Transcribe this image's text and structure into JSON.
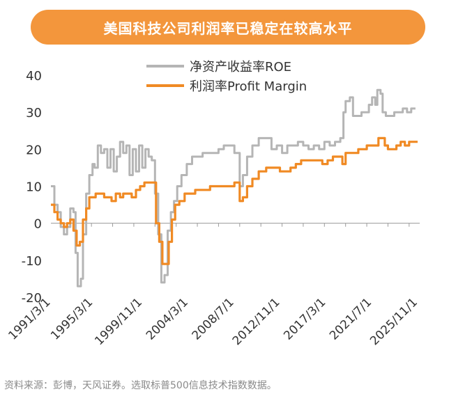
{
  "title": "美国科技公司利润率已稳定在较高水平",
  "source": "资料来源：彭博，天风证券。选取标普500信息技术指数数据。",
  "colors": {
    "roe": "#B5B5B5",
    "margin": "#F08A24",
    "banner": "#F3963C"
  },
  "chart_data": {
    "type": "line",
    "title": "美国科技公司利润率已稳定在较高水平",
    "xlabel": "",
    "ylabel": "",
    "ylim": [
      -20,
      40
    ],
    "yticks": [
      -20,
      -10,
      0,
      10,
      20,
      30,
      40
    ],
    "xlim": [
      1991.17,
      2026.0
    ],
    "xtick_labels": [
      "1991/3/1",
      "1995/3/1",
      "1999/11/1",
      "2004/3/1",
      "2008/7/1",
      "2012/11/1",
      "2017/3/1",
      "2021/7/1",
      "2025/11/1"
    ],
    "xtick_years": [
      1991.17,
      1995.17,
      1999.83,
      2004.17,
      2008.5,
      2012.83,
      2017.17,
      2021.5,
      2025.83
    ],
    "legend_position": "top-right",
    "grid": false,
    "series": [
      {
        "name": "净资产收益率ROE",
        "color": "#B5B5B5",
        "points": [
          [
            1991.17,
            10
          ],
          [
            1991.5,
            5
          ],
          [
            1991.8,
            3
          ],
          [
            1992.1,
            -1
          ],
          [
            1992.4,
            -3
          ],
          [
            1992.7,
            -1
          ],
          [
            1993.0,
            4
          ],
          [
            1993.3,
            3
          ],
          [
            1993.5,
            -8
          ],
          [
            1993.7,
            -17
          ],
          [
            1994.0,
            -15
          ],
          [
            1994.2,
            -3
          ],
          [
            1994.5,
            8
          ],
          [
            1994.8,
            13
          ],
          [
            1995.1,
            16
          ],
          [
            1995.3,
            15
          ],
          [
            1995.6,
            21
          ],
          [
            1995.9,
            19
          ],
          [
            1996.2,
            20
          ],
          [
            1996.5,
            15
          ],
          [
            1996.8,
            20
          ],
          [
            1997.1,
            14
          ],
          [
            1997.4,
            18
          ],
          [
            1997.7,
            22
          ],
          [
            1998.0,
            19
          ],
          [
            1998.3,
            21
          ],
          [
            1998.6,
            13
          ],
          [
            1998.9,
            20
          ],
          [
            1999.2,
            14
          ],
          [
            1999.5,
            21
          ],
          [
            1999.8,
            15
          ],
          [
            2000.1,
            20
          ],
          [
            2000.4,
            18
          ],
          [
            2000.7,
            17
          ],
          [
            2001.0,
            8
          ],
          [
            2001.3,
            -3
          ],
          [
            2001.6,
            -16
          ],
          [
            2001.9,
            -14
          ],
          [
            2002.2,
            -2
          ],
          [
            2002.5,
            3
          ],
          [
            2002.8,
            6
          ],
          [
            2003.1,
            10
          ],
          [
            2003.5,
            13
          ],
          [
            2004.0,
            16
          ],
          [
            2004.5,
            18
          ],
          [
            2005.0,
            18
          ],
          [
            2005.5,
            19
          ],
          [
            2006.0,
            19
          ],
          [
            2006.5,
            19
          ],
          [
            2007.0,
            20
          ],
          [
            2007.5,
            21
          ],
          [
            2008.0,
            21
          ],
          [
            2008.5,
            19
          ],
          [
            2009.0,
            10
          ],
          [
            2009.3,
            13
          ],
          [
            2009.7,
            18
          ],
          [
            2010.2,
            21
          ],
          [
            2010.8,
            23
          ],
          [
            2011.5,
            23
          ],
          [
            2012.0,
            20
          ],
          [
            2012.5,
            21
          ],
          [
            2013.0,
            19
          ],
          [
            2013.5,
            21
          ],
          [
            2014.0,
            21
          ],
          [
            2014.5,
            22
          ],
          [
            2015.0,
            21
          ],
          [
            2015.5,
            20
          ],
          [
            2016.0,
            21
          ],
          [
            2016.5,
            20
          ],
          [
            2017.0,
            22
          ],
          [
            2017.5,
            21
          ],
          [
            2018.0,
            22
          ],
          [
            2018.5,
            23
          ],
          [
            2018.8,
            30
          ],
          [
            2019.0,
            33
          ],
          [
            2019.4,
            34
          ],
          [
            2019.7,
            29
          ],
          [
            2020.0,
            29
          ],
          [
            2020.5,
            30
          ],
          [
            2020.9,
            30
          ],
          [
            2021.2,
            32
          ],
          [
            2021.5,
            34
          ],
          [
            2021.8,
            32
          ],
          [
            2022.0,
            36
          ],
          [
            2022.3,
            35
          ],
          [
            2022.5,
            30
          ],
          [
            2022.8,
            29
          ],
          [
            2023.2,
            29
          ],
          [
            2023.6,
            30
          ],
          [
            2024.0,
            30
          ],
          [
            2024.4,
            31
          ],
          [
            2024.8,
            30
          ],
          [
            2025.2,
            31
          ],
          [
            2025.6,
            31
          ]
        ]
      },
      {
        "name": "利润率Profit Margin",
        "color": "#F08A24",
        "points": [
          [
            1991.17,
            5
          ],
          [
            1991.5,
            3
          ],
          [
            1991.8,
            1
          ],
          [
            1992.1,
            0
          ],
          [
            1992.4,
            -1
          ],
          [
            1992.7,
            0
          ],
          [
            1993.0,
            1
          ],
          [
            1993.3,
            -2
          ],
          [
            1993.6,
            -6
          ],
          [
            1993.9,
            -5
          ],
          [
            1994.2,
            1
          ],
          [
            1994.5,
            4
          ],
          [
            1994.8,
            7
          ],
          [
            1995.1,
            7
          ],
          [
            1995.4,
            8
          ],
          [
            1995.8,
            8
          ],
          [
            1996.2,
            7
          ],
          [
            1996.5,
            7
          ],
          [
            1996.9,
            6
          ],
          [
            1997.3,
            8
          ],
          [
            1997.7,
            7
          ],
          [
            1998.0,
            8
          ],
          [
            1998.4,
            8
          ],
          [
            1998.8,
            7
          ],
          [
            1999.2,
            9
          ],
          [
            1999.6,
            10
          ],
          [
            2000.0,
            11
          ],
          [
            2000.4,
            11
          ],
          [
            2000.8,
            11
          ],
          [
            2001.1,
            0
          ],
          [
            2001.4,
            -5
          ],
          [
            2001.7,
            -11
          ],
          [
            2002.0,
            -11
          ],
          [
            2002.3,
            -5
          ],
          [
            2002.6,
            1
          ],
          [
            2002.9,
            5
          ],
          [
            2003.3,
            6
          ],
          [
            2003.8,
            8
          ],
          [
            2004.3,
            8
          ],
          [
            2004.8,
            9
          ],
          [
            2005.5,
            9
          ],
          [
            2006.2,
            10
          ],
          [
            2007.0,
            10
          ],
          [
            2007.8,
            10
          ],
          [
            2008.5,
            11
          ],
          [
            2009.0,
            6
          ],
          [
            2009.3,
            7
          ],
          [
            2009.7,
            10
          ],
          [
            2010.2,
            12
          ],
          [
            2010.8,
            14
          ],
          [
            2011.5,
            15
          ],
          [
            2012.2,
            15
          ],
          [
            2012.8,
            14
          ],
          [
            2013.3,
            14
          ],
          [
            2013.8,
            15
          ],
          [
            2014.3,
            16
          ],
          [
            2014.8,
            17
          ],
          [
            2015.3,
            17
          ],
          [
            2015.8,
            17
          ],
          [
            2016.3,
            17
          ],
          [
            2016.8,
            16
          ],
          [
            2017.3,
            17
          ],
          [
            2017.8,
            18
          ],
          [
            2018.3,
            18
          ],
          [
            2018.7,
            16
          ],
          [
            2019.0,
            19
          ],
          [
            2019.4,
            19
          ],
          [
            2019.8,
            19
          ],
          [
            2020.2,
            20
          ],
          [
            2020.6,
            20
          ],
          [
            2021.0,
            21
          ],
          [
            2021.4,
            21
          ],
          [
            2021.8,
            21
          ],
          [
            2022.1,
            23
          ],
          [
            2022.4,
            23
          ],
          [
            2022.7,
            21
          ],
          [
            2023.0,
            20
          ],
          [
            2023.4,
            20
          ],
          [
            2023.8,
            21
          ],
          [
            2024.2,
            22
          ],
          [
            2024.6,
            21
          ],
          [
            2025.0,
            22
          ],
          [
            2025.4,
            22
          ],
          [
            2025.8,
            22
          ]
        ]
      }
    ]
  }
}
